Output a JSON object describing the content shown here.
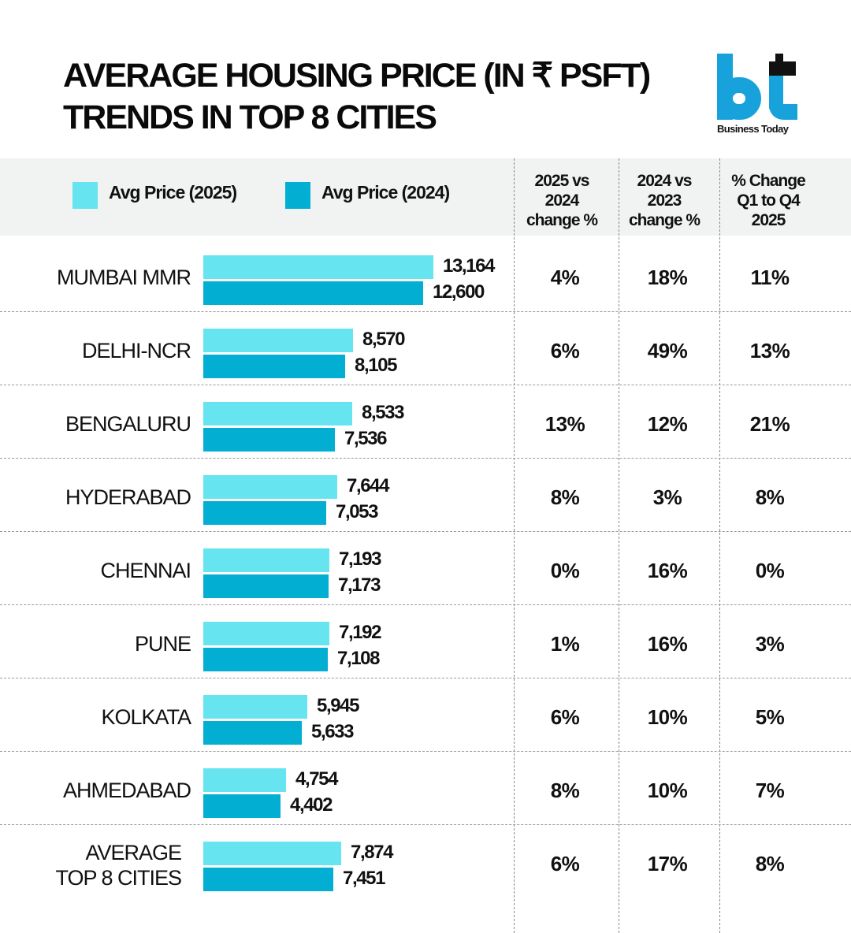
{
  "header": {
    "title_line1": "AVERAGE HOUSING PRICE (IN ₹ PSFT)",
    "title_line2": "TRENDS IN TOP 8 CITIES",
    "logo_text": "Business Today",
    "logo_icon": "bt-logo"
  },
  "colors": {
    "series_2025": "#66e4ef",
    "series_2024": "#02afd3",
    "logo_blue": "#17a2dc",
    "header_band": "#f1f2f2"
  },
  "legend": [
    {
      "label": "Avg Price (2025)",
      "color": "#66e4ef"
    },
    {
      "label": "Avg Price (2024)",
      "color": "#02afd3"
    }
  ],
  "columns": [
    {
      "label_lines": [
        "2025 vs",
        "2024",
        "change %"
      ]
    },
    {
      "label_lines": [
        "2024 vs",
        "2023",
        "change %"
      ]
    },
    {
      "label_lines": [
        "% Change",
        "Q1 to Q4",
        "2025"
      ]
    }
  ],
  "chart_data": {
    "type": "bar",
    "orientation": "horizontal",
    "title": "AVERAGE HOUSING PRICE (IN ₹ PSFT) TRENDS IN TOP 8 CITIES",
    "xlabel": "",
    "ylabel": "",
    "unit": "₹ per sq ft",
    "categories": [
      "MUMBAI MMR",
      "DELHI-NCR",
      "BENGALURU",
      "HYDERABAD",
      "CHENNAI",
      "PUNE",
      "KOLKATA",
      "AHMEDABAD",
      "AVERAGE TOP 8 CITIES"
    ],
    "category_lines": [
      [
        "MUMBAI MMR"
      ],
      [
        "DELHI-NCR"
      ],
      [
        "BENGALURU"
      ],
      [
        "HYDERABAD"
      ],
      [
        "CHENNAI"
      ],
      [
        "PUNE"
      ],
      [
        "KOLKATA"
      ],
      [
        "AHMEDABAD"
      ],
      [
        "AVERAGE",
        "TOP 8 CITIES"
      ]
    ],
    "series": [
      {
        "name": "Avg Price (2025)",
        "values": [
          13164,
          8570,
          8533,
          7644,
          7193,
          7192,
          5945,
          4754,
          7874
        ],
        "labels": [
          "13,164",
          "8,570",
          "8,533",
          "7,644",
          "7,193",
          "7,192",
          "5,945",
          "4,754",
          "7,874"
        ]
      },
      {
        "name": "Avg Price (2024)",
        "values": [
          12600,
          8105,
          7536,
          7053,
          7173,
          7108,
          5633,
          4402,
          7451
        ],
        "labels": [
          "12,600",
          "8,105",
          "7,536",
          "7,053",
          "7,173",
          "7,108",
          "5,633",
          "4,402",
          "7,451"
        ]
      }
    ],
    "table_columns": [
      {
        "name": "2025 vs 2024 change %",
        "values": [
          "4%",
          "6%",
          "13%",
          "8%",
          "0%",
          "1%",
          "6%",
          "8%",
          "6%"
        ]
      },
      {
        "name": "2024 vs 2023 change %",
        "values": [
          "18%",
          "49%",
          "12%",
          "3%",
          "16%",
          "16%",
          "10%",
          "10%",
          "17%"
        ]
      },
      {
        "name": "% Change Q1 to Q4 2025",
        "values": [
          "11%",
          "13%",
          "21%",
          "8%",
          "0%",
          "3%",
          "5%",
          "7%",
          "8%"
        ]
      }
    ],
    "xlim": [
      0,
      13164
    ],
    "grid": false,
    "legend_position": "top-left"
  }
}
